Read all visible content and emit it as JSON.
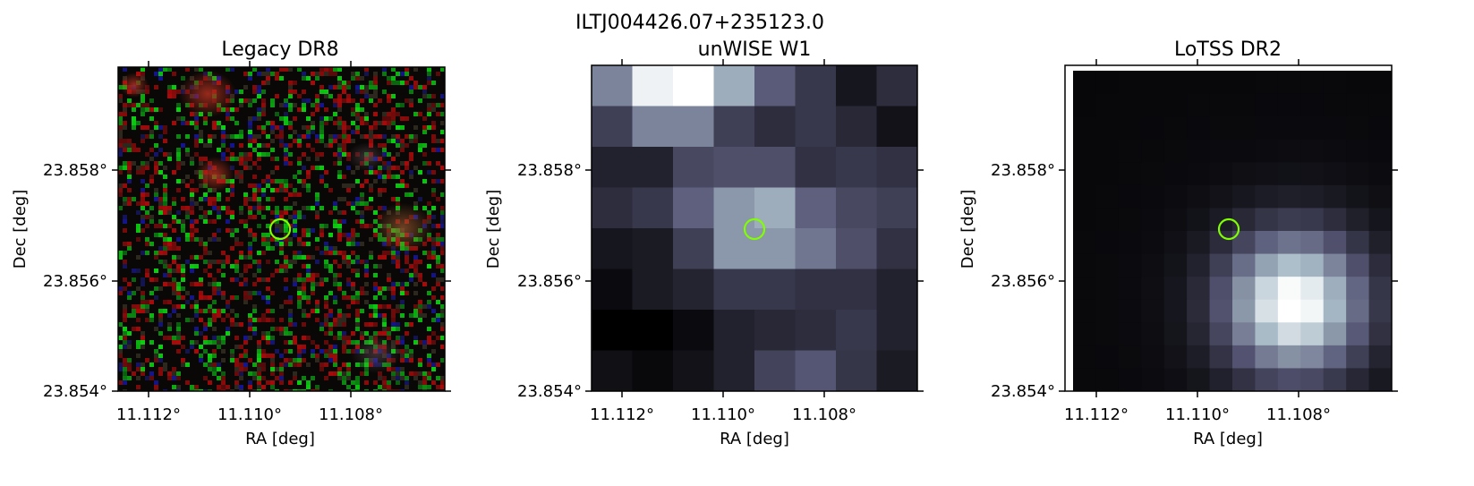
{
  "figure": {
    "suptitle": "ILTJ004426.07+235123.0",
    "colors": {
      "marker": "#7fff00",
      "frame": "#000000"
    },
    "panels": [
      {
        "title": "Legacy DR8",
        "image": "noisy RGB optical cutout with faint reddish sources",
        "xlabel": "RA [deg]",
        "ylabel": "Dec [deg]",
        "xticks": [
          "11.112°",
          "11.110°",
          "11.108°"
        ],
        "yticks": [
          "23.858°",
          "23.856°",
          "23.854°"
        ],
        "marker": "circle"
      },
      {
        "title": "unWISE W1",
        "image": "8x8 pixel grayscale infrared cutout",
        "xlabel": "RA [deg]",
        "ylabel": "Dec [deg]",
        "xticks": [
          "11.112°",
          "11.110°",
          "11.108°"
        ],
        "yticks": [
          "23.858°",
          "23.856°",
          "23.854°"
        ],
        "marker": "circle"
      },
      {
        "title": "LoTSS DR2",
        "image": "low-resolution radio cutout with bright source lower right of centre",
        "xlabel": "RA [deg]",
        "ylabel": "Dec [deg]",
        "xticks": [
          "11.112°",
          "11.110°",
          "11.108°"
        ],
        "yticks": [
          "23.858°",
          "23.856°",
          "23.854°"
        ],
        "marker": "circle"
      }
    ]
  }
}
